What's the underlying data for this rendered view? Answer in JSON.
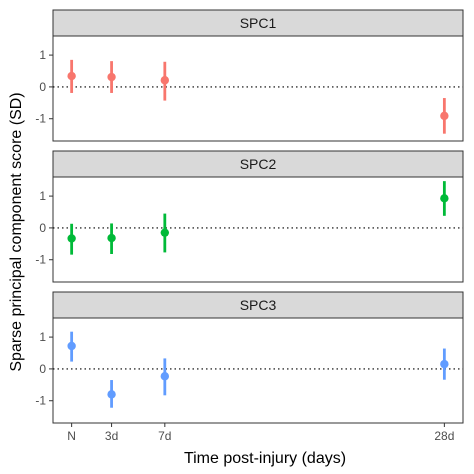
{
  "chart_data": {
    "type": "scatter",
    "subtype": "faceted point-range",
    "xlabel": "Time post-injury (days)",
    "ylabel": "Sparse principal component score (SD)",
    "x_categories": [
      "N",
      "3d",
      "7d",
      "28d"
    ],
    "x_positions_days": [
      0,
      3,
      7,
      28
    ],
    "xlim_days": [
      -1.4,
      29.4
    ],
    "ylim": [
      -1.7,
      1.6
    ],
    "y_ticks": [
      -1,
      0,
      1
    ],
    "reference_line_y": 0,
    "grid": false,
    "legend": "none",
    "panels": [
      {
        "title": "SPC1",
        "color": "#F8766D",
        "points": [
          {
            "x": "N",
            "y": 0.34,
            "low": -0.19,
            "high": 0.85
          },
          {
            "x": "3d",
            "y": 0.31,
            "low": -0.19,
            "high": 0.81
          },
          {
            "x": "7d",
            "y": 0.21,
            "low": -0.43,
            "high": 0.79
          },
          {
            "x": "28d",
            "y": -0.91,
            "low": -1.47,
            "high": -0.35
          }
        ]
      },
      {
        "title": "SPC2",
        "color": "#00BA38",
        "points": [
          {
            "x": "N",
            "y": -0.33,
            "low": -0.84,
            "high": 0.13
          },
          {
            "x": "3d",
            "y": -0.32,
            "low": -0.82,
            "high": 0.14
          },
          {
            "x": "7d",
            "y": -0.15,
            "low": -0.77,
            "high": 0.45
          },
          {
            "x": "28d",
            "y": 0.93,
            "low": 0.38,
            "high": 1.47
          }
        ]
      },
      {
        "title": "SPC3",
        "color": "#619CFF",
        "points": [
          {
            "x": "N",
            "y": 0.72,
            "low": 0.23,
            "high": 1.17
          },
          {
            "x": "3d",
            "y": -0.8,
            "low": -1.22,
            "high": -0.35
          },
          {
            "x": "7d",
            "y": -0.23,
            "low": -0.83,
            "high": 0.33
          },
          {
            "x": "28d",
            "y": 0.15,
            "low": -0.34,
            "high": 0.64
          }
        ]
      }
    ]
  }
}
